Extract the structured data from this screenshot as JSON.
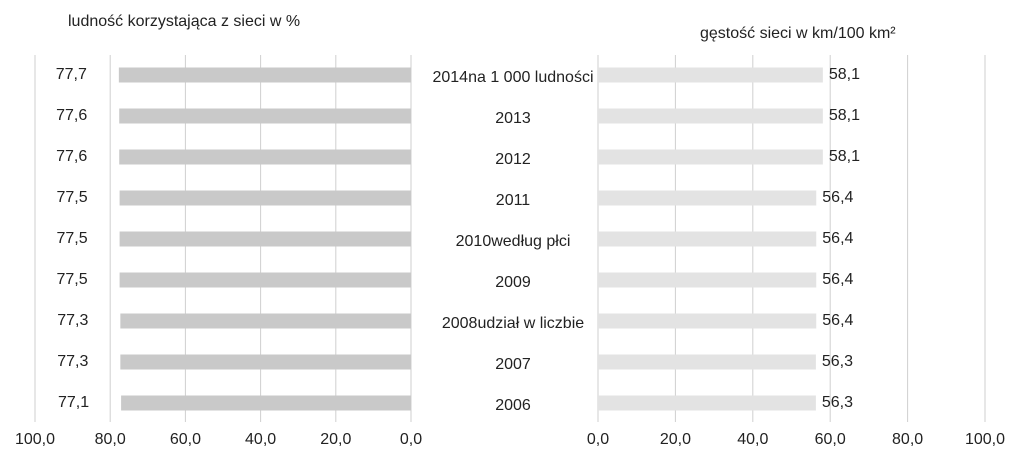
{
  "chart_data": [
    {
      "type": "hbar",
      "title": "ludność korzystająca z sieci w %",
      "categories": [
        "2014na 1 000 ludności",
        "2013",
        "2012",
        "2011",
        "2010według płci",
        "2009",
        "2008udział w liczbie",
        "2007",
        "2006"
      ],
      "values": [
        77.7,
        77.6,
        77.6,
        77.5,
        77.5,
        77.5,
        77.3,
        77.3,
        77.1
      ],
      "value_labels": [
        "77,7",
        "77,6",
        "77,6",
        "77,5",
        "77,5",
        "77,5",
        "77,3",
        "77,3",
        "77,1"
      ],
      "color": "#c9c9c9",
      "xlim": [
        100,
        0
      ],
      "xticks": [
        {
          "value": 100,
          "label": "100,0"
        },
        {
          "value": 80,
          "label": "80,0"
        },
        {
          "value": 60,
          "label": "60,0"
        },
        {
          "value": 40,
          "label": "40,0"
        },
        {
          "value": 20,
          "label": "20,0"
        },
        {
          "value": 0,
          "label": "0,0"
        }
      ],
      "grid": true
    },
    {
      "type": "hbar",
      "title": "gęstość sieci w km/100 km²",
      "values": [
        58.1,
        58.1,
        58.1,
        56.4,
        56.4,
        56.4,
        56.4,
        56.3,
        56.3
      ],
      "value_labels": [
        "58,1",
        "58,1",
        "58,1",
        "56,4",
        "56,4",
        "56,4",
        "56,4",
        "56,3",
        "56,3"
      ],
      "color": "#e3e3e3",
      "xlim": [
        0,
        100
      ],
      "xticks": [
        {
          "value": 0,
          "label": "0,0"
        },
        {
          "value": 20,
          "label": "20,0"
        },
        {
          "value": 40,
          "label": "40,0"
        },
        {
          "value": 60,
          "label": "60,0"
        },
        {
          "value": 80,
          "label": "80,0"
        },
        {
          "value": 100,
          "label": "100,0"
        }
      ],
      "grid": true
    }
  ]
}
